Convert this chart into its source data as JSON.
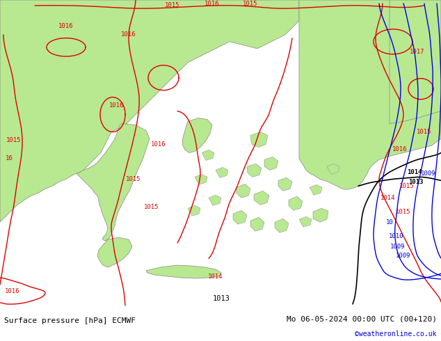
{
  "title_left": "Surface pressure [hPa] ECMWF",
  "title_right": "Mo 06-05-2024 00:00 UTC (00+120)",
  "copyright": "©weatheronline.co.uk",
  "bg_color": "#d8d8d8",
  "land_green_color": "#b8e890",
  "contour_red_color": "#dd0000",
  "contour_black_color": "#000000",
  "contour_blue_color": "#0000dd",
  "coast_color": "#888888",
  "footer_bg": "#ffffff",
  "label_fontsize": 6.5,
  "footer_fontsize": 8.0,
  "copyright_color": "#0000cc",
  "coast_lw": 0.5,
  "contour_lw": 1.0
}
